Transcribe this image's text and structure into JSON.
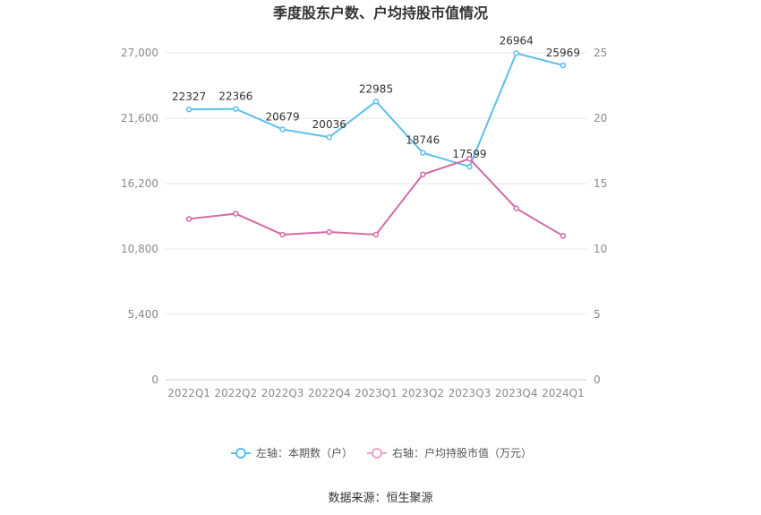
{
  "chart_data": {
    "type": "line",
    "title": "季度股东户数、户均持股市值情况",
    "categories": [
      "2022Q1",
      "2022Q2",
      "2022Q3",
      "2022Q4",
      "2023Q1",
      "2023Q2",
      "2023Q3",
      "2023Q4",
      "2024Q1"
    ],
    "series": [
      {
        "name": "左轴：本期数（户）",
        "axis": "left",
        "color": "#5bc0eb",
        "values": [
          22327,
          22366,
          20679,
          20036,
          22985,
          18746,
          17599,
          26964,
          25969
        ],
        "labels": [
          "22327",
          "22366",
          "20679",
          "20036",
          "22985",
          "18746",
          "17599",
          "26964",
          "25969"
        ]
      },
      {
        "name": "右轴：户均持股市值（万元）",
        "axis": "right",
        "color": "#d46aa8",
        "legend_color": "#e9a6cb",
        "values": [
          12.3,
          12.7,
          11.1,
          11.3,
          11.1,
          15.7,
          16.9,
          13.1,
          11.0
        ]
      }
    ],
    "left_axis": {
      "ylim": [
        0,
        27000
      ],
      "ticks": [
        "0",
        "5,400",
        "10,800",
        "16,200",
        "21,600",
        "27,000"
      ]
    },
    "right_axis": {
      "ylim": [
        0,
        25
      ],
      "ticks": [
        "0",
        "5",
        "10",
        "15",
        "20",
        "25"
      ]
    },
    "legend_position": "bottom",
    "grid": true
  },
  "source": "数据来源：恒生聚源"
}
